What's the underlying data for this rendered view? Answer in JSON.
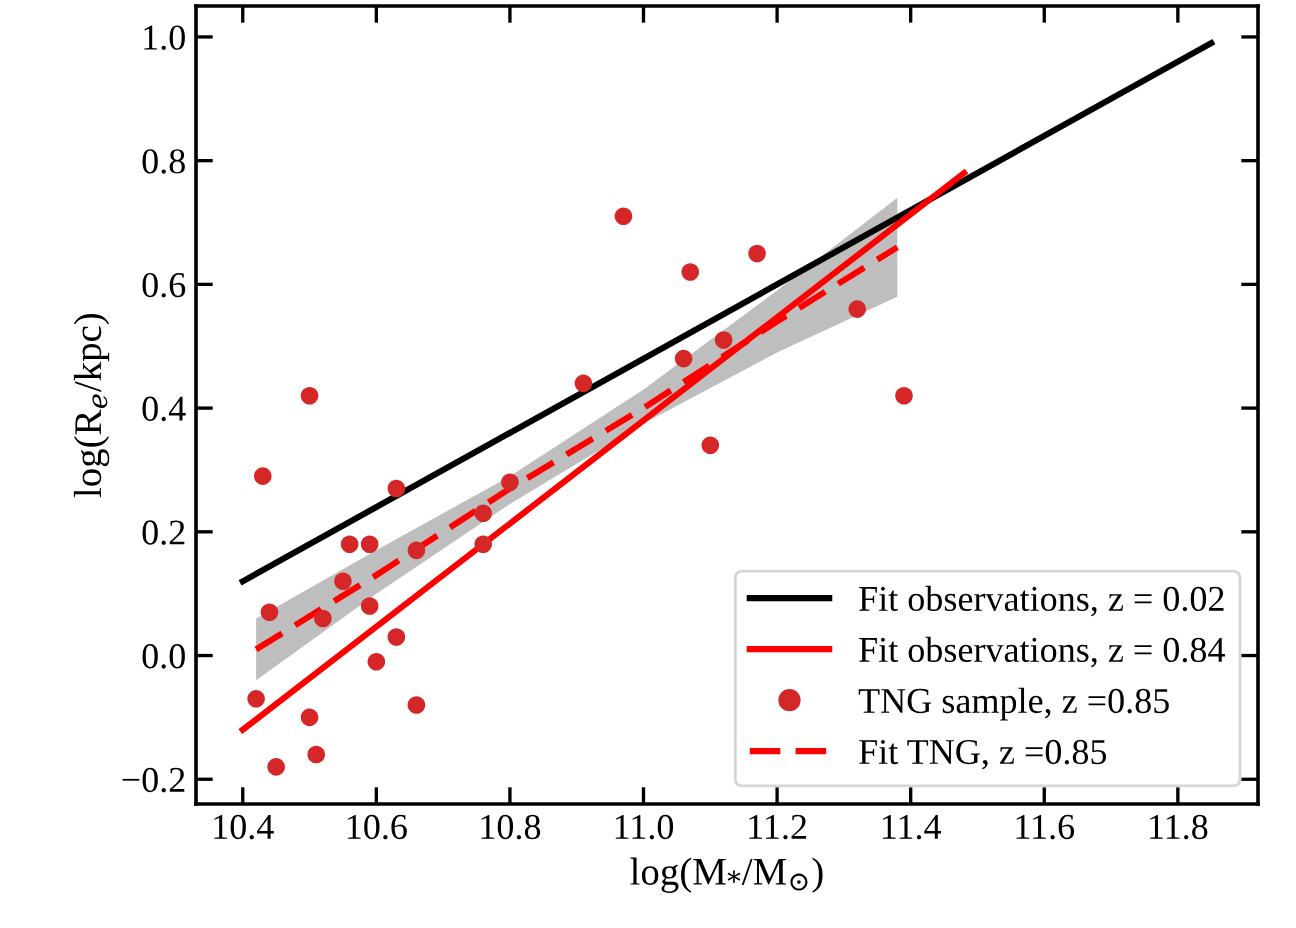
{
  "chart_data": {
    "type": "scatter",
    "xlabel": "log(M$_{*}$/M$_{⊙}$)",
    "ylabel": "log(R$_{e}$/kpc)",
    "xlim": [
      10.33,
      11.92
    ],
    "ylim": [
      -0.24,
      1.05
    ],
    "xticks": [
      10.4,
      10.6,
      10.8,
      {
        "value": 11,
        "label": "11.0"
      },
      11.2,
      11.4,
      11.6,
      11.8
    ],
    "yticks": [
      {
        "value": -0.2,
        "label": "−0.2"
      },
      {
        "value": 0,
        "label": "0.0"
      },
      0.2,
      0.4,
      0.6,
      0.8,
      {
        "value": 1,
        "label": "1.0"
      }
    ],
    "grid": false,
    "legend": "bottom right",
    "series": [
      {
        "name": "Fit observations, z = 0.02",
        "type": "line",
        "color": "#000000",
        "line_style": "solid",
        "marker": "none",
        "x": [
          10.4,
          11.85
        ],
        "values": [
          0.12,
          0.99
        ]
      },
      {
        "name": "Fit observations, z = 0.84",
        "type": "line",
        "color": "#ff0000",
        "line_style": "solid",
        "marker": "none",
        "x": [
          10.4,
          11.48
        ],
        "values": [
          -0.12,
          0.78
        ]
      },
      {
        "name": "TNG sample, z =0.85",
        "color": "#d62728",
        "marker": "circle",
        "x": [
          10.97,
          11.07,
          11.17,
          11.12,
          11.06,
          10.91,
          10.5,
          11.1,
          10.43,
          10.63,
          10.8,
          10.56,
          10.59,
          10.66,
          10.76,
          10.76,
          10.55,
          10.44,
          10.52,
          10.59,
          10.63,
          10.6,
          10.42,
          10.66,
          10.5,
          10.45,
          10.51,
          11.32,
          11.39
        ],
        "values": [
          0.71,
          0.62,
          0.65,
          0.51,
          0.48,
          0.44,
          0.42,
          0.34,
          0.29,
          0.27,
          0.28,
          0.18,
          0.18,
          0.17,
          0.23,
          0.18,
          0.12,
          0.07,
          0.06,
          0.08,
          0.03,
          -0.01,
          -0.07,
          -0.08,
          -0.1,
          -0.18,
          -0.16,
          0.56,
          0.42
        ]
      },
      {
        "name": "Fit TNG, z =0.85",
        "type": "line",
        "color": "#ff0000",
        "line_style": "dashed",
        "marker": "none",
        "x": [
          10.42,
          10.6,
          10.8,
          11.0,
          11.2,
          11.38
        ],
        "values": [
          0.01,
          0.13,
          0.27,
          0.4,
          0.54,
          0.66
        ],
        "lower": [
          -0.04,
          0.1,
          0.245,
          0.375,
          0.49,
          0.58
        ],
        "upper": [
          0.06,
          0.17,
          0.29,
          0.43,
          0.59,
          0.74
        ]
      }
    ]
  }
}
